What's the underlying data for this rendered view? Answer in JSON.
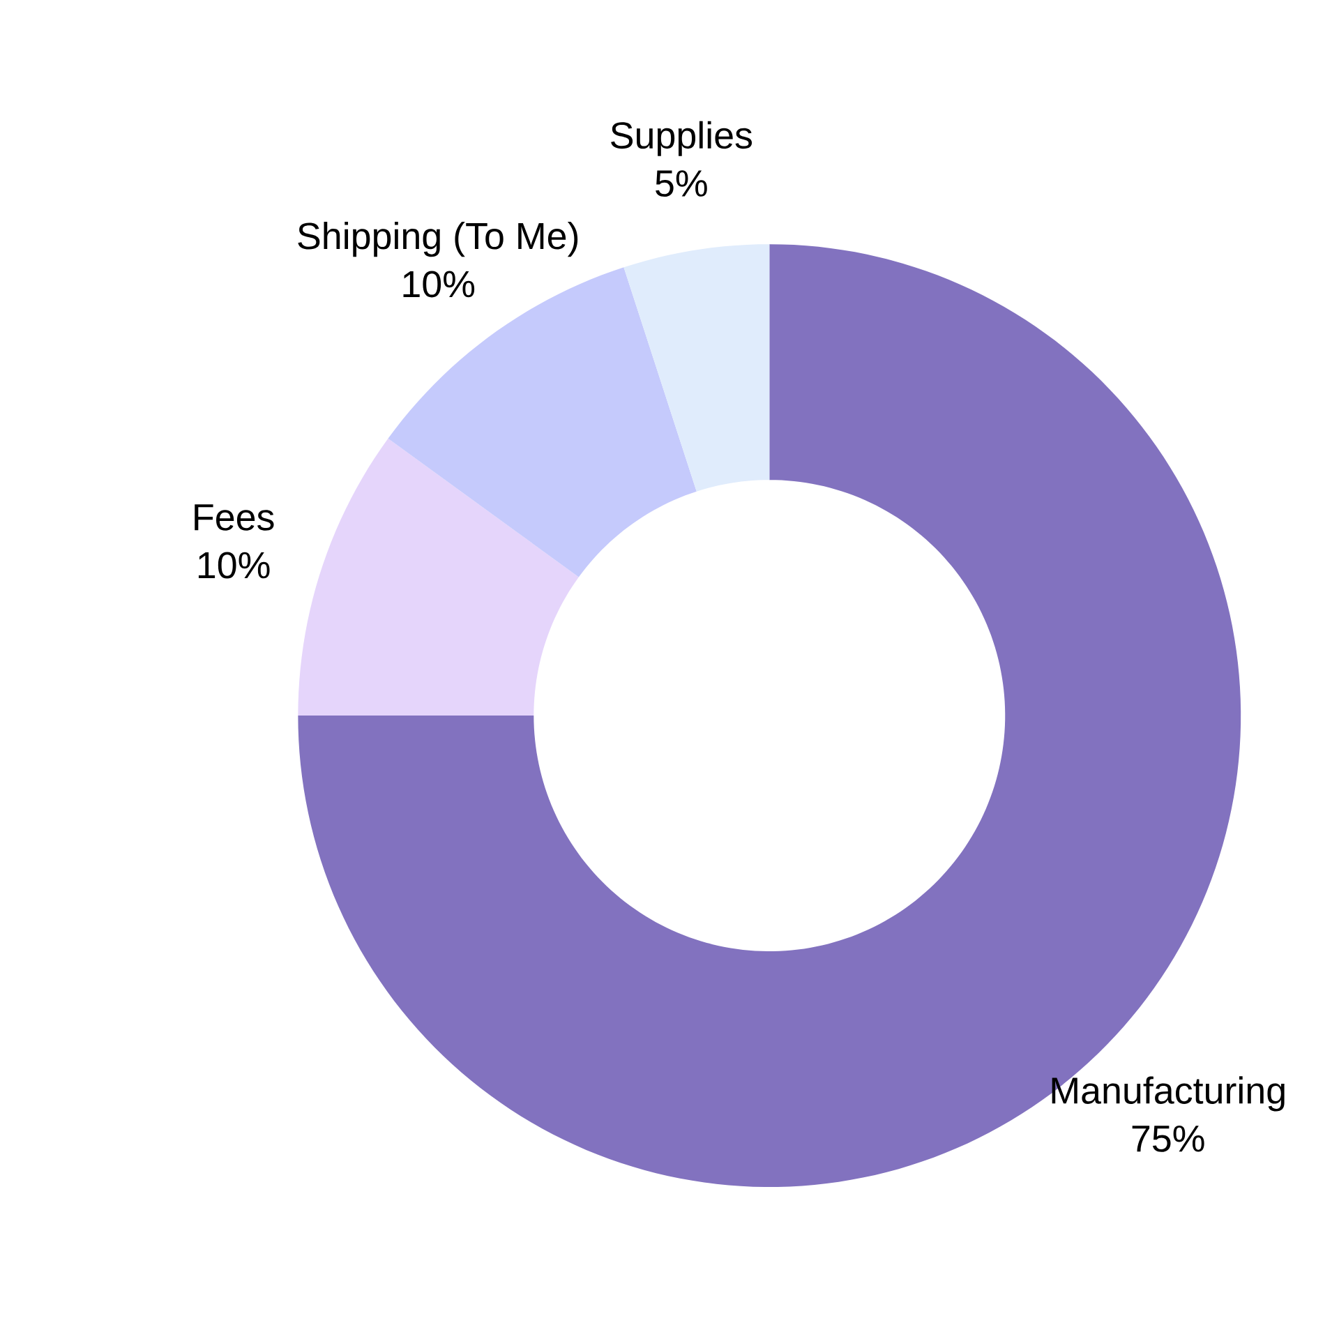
{
  "chart_data": {
    "type": "donut",
    "categories": [
      "Manufacturing",
      "Fees",
      "Shipping (To Me)",
      "Supplies"
    ],
    "values": [
      75,
      10,
      10,
      5
    ],
    "value_labels": [
      "75%",
      "10%",
      "10%",
      "5%"
    ],
    "colors": [
      "#8272bf",
      "#e5d5fb",
      "#c5cafc",
      "#e0ecfc"
    ]
  }
}
